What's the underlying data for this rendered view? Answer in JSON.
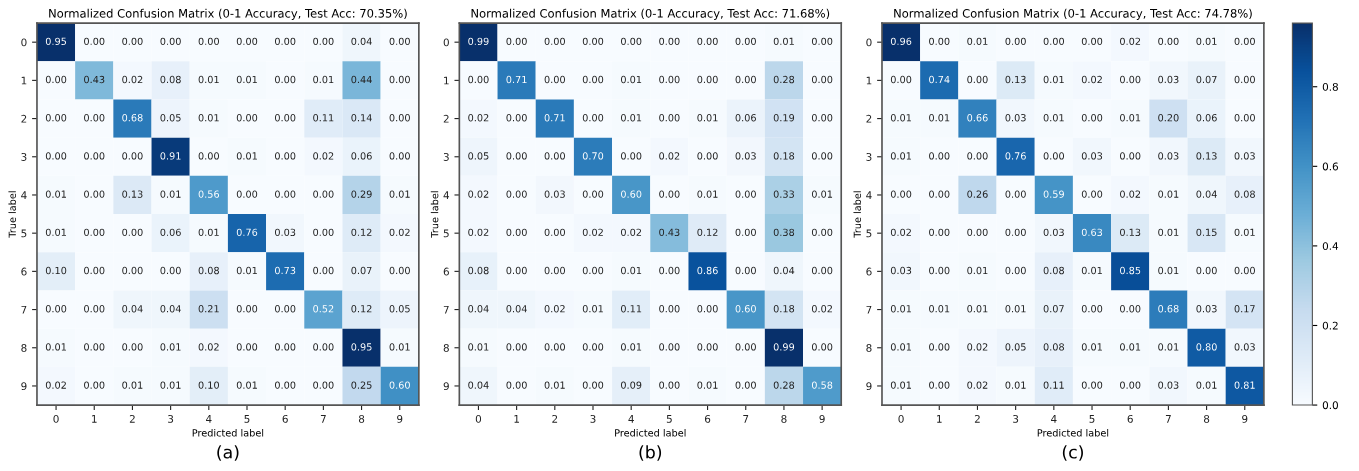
{
  "chart_data": [
    {
      "type": "heatmap",
      "title": "Normalized Confusion Matrix (0-1 Accuracy, Test Acc: 70.35%)",
      "xlabel": "Predicted label",
      "ylabel": "True label",
      "annotations": [
        "(a)"
      ],
      "cell_labels": [
        [
          "0.95",
          "0.00",
          "0.00",
          "0.00",
          "0.00",
          "0.00",
          "0.00",
          "0.00",
          "0.04",
          "0.00"
        ],
        [
          "0.00",
          "0.43",
          "0.02",
          "0.08",
          "0.01",
          "0.01",
          "0.00",
          "0.01",
          "0.44",
          "0.00"
        ],
        [
          "0.00",
          "0.00",
          "0.68",
          "0.05",
          "0.01",
          "0.00",
          "0.00",
          "0.11",
          "0.14",
          "0.00"
        ],
        [
          "0.00",
          "0.00",
          "0.00",
          "0.91",
          "0.00",
          "0.01",
          "0.00",
          "0.02",
          "0.06",
          "0.00"
        ],
        [
          "0.01",
          "0.00",
          "0.13",
          "0.01",
          "0.56",
          "0.00",
          "0.00",
          "0.00",
          "0.29",
          "0.01"
        ],
        [
          "0.01",
          "0.00",
          "0.00",
          "0.06",
          "0.01",
          "0.76",
          "0.03",
          "0.00",
          "0.12",
          "0.02"
        ],
        [
          "0.10",
          "0.00",
          "0.00",
          "0.00",
          "0.08",
          "0.01",
          "0.73",
          "0.00",
          "0.07",
          "0.00"
        ],
        [
          "0.00",
          "0.00",
          "0.04",
          "0.04",
          "0.21",
          "0.00",
          "0.00",
          "0.52",
          "0.12",
          "0.05"
        ],
        [
          "0.01",
          "0.00",
          "0.00",
          "0.01",
          "0.02",
          "0.00",
          "0.00",
          "0.00",
          "0.95",
          "0.01"
        ],
        [
          "0.02",
          "0.00",
          "0.01",
          "0.01",
          "0.10",
          "0.01",
          "0.00",
          "0.00",
          "0.25",
          "0.60"
        ]
      ],
      "categories": [
        "0",
        "1",
        "2",
        "3",
        "4",
        "5",
        "6",
        "7",
        "8",
        "9"
      ],
      "y_categories": [
        "0",
        "1",
        "2",
        "3",
        "4",
        "5",
        "6",
        "7",
        "8",
        "9"
      ],
      "cells": [
        [
          0.95,
          0.0,
          0.0,
          0.0,
          0.0,
          0.0,
          0.0,
          0.0,
          0.04,
          0.0
        ],
        [
          0.0,
          0.43,
          0.02,
          0.08,
          0.01,
          0.01,
          0.0,
          0.01,
          0.44,
          0.0
        ],
        [
          0.0,
          0.0,
          0.68,
          0.05,
          0.01,
          0.0,
          0.0,
          0.11,
          0.14,
          0.0
        ],
        [
          0.0,
          0.0,
          0.0,
          0.91,
          0.0,
          0.01,
          0.0,
          0.02,
          0.06,
          0.0
        ],
        [
          0.01,
          0.0,
          0.13,
          0.01,
          0.56,
          0.0,
          0.0,
          0.0,
          0.29,
          0.01
        ],
        [
          0.01,
          0.0,
          0.0,
          0.06,
          0.01,
          0.76,
          0.03,
          0.0,
          0.12,
          0.02
        ],
        [
          0.1,
          0.0,
          0.0,
          0.0,
          0.08,
          0.01,
          0.73,
          0.0,
          0.07,
          0.0
        ],
        [
          0.0,
          0.0,
          0.04,
          0.04,
          0.21,
          0.0,
          0.0,
          0.52,
          0.12,
          0.05
        ],
        [
          0.01,
          0.0,
          0.0,
          0.01,
          0.02,
          0.0,
          0.0,
          0.0,
          0.95,
          0.01
        ],
        [
          0.02,
          0.0,
          0.01,
          0.01,
          0.1,
          0.01,
          0.0,
          0.0,
          0.25,
          0.6
        ]
      ]
    },
    {
      "type": "heatmap",
      "title": "Normalized Confusion Matrix (0-1 Accuracy, Test Acc: 71.68%)",
      "xlabel": "Predicted label",
      "ylabel": "True label",
      "annotations": [
        "(b)"
      ],
      "cell_labels": [
        [
          "0.99",
          "0.00",
          "0.00",
          "0.00",
          "0.00",
          "0.00",
          "0.00",
          "0.00",
          "0.01",
          "0.00"
        ],
        [
          "0.00",
          "0.71",
          "0.00",
          "0.00",
          "0.01",
          "0.00",
          "0.00",
          "0.00",
          "0.28",
          "0.00"
        ],
        [
          "0.02",
          "0.00",
          "0.71",
          "0.00",
          "0.01",
          "0.00",
          "0.01",
          "0.06",
          "0.19",
          "0.00"
        ],
        [
          "0.05",
          "0.00",
          "0.00",
          "0.70",
          "0.00",
          "0.02",
          "0.00",
          "0.03",
          "0.18",
          "0.00"
        ],
        [
          "0.02",
          "0.00",
          "0.03",
          "0.00",
          "0.60",
          "0.00",
          "0.01",
          "0.00",
          "0.33",
          "0.01"
        ],
        [
          "0.02",
          "0.00",
          "0.00",
          "0.02",
          "0.02",
          "0.43",
          "0.12",
          "0.00",
          "0.38",
          "0.00"
        ],
        [
          "0.08",
          "0.00",
          "0.00",
          "0.00",
          "0.01",
          "0.00",
          "0.86",
          "0.00",
          "0.04",
          "0.00"
        ],
        [
          "0.04",
          "0.04",
          "0.02",
          "0.01",
          "0.11",
          "0.00",
          "0.00",
          "0.60",
          "0.18",
          "0.02"
        ],
        [
          "0.01",
          "0.00",
          "0.00",
          "0.00",
          "0.01",
          "0.00",
          "0.00",
          "0.00",
          "0.99",
          "0.00"
        ],
        [
          "0.04",
          "0.00",
          "0.01",
          "0.00",
          "0.09",
          "0.00",
          "0.01",
          "0.00",
          "0.28",
          "0.58"
        ]
      ],
      "categories": [
        "0",
        "1",
        "2",
        "3",
        "4",
        "5",
        "6",
        "7",
        "8",
        "9"
      ],
      "y_categories": [
        "0",
        "1",
        "2",
        "3",
        "4",
        "5",
        "6",
        "7",
        "8",
        "9"
      ],
      "cells": [
        [
          0.99,
          0.0,
          0.0,
          0.0,
          0.0,
          0.0,
          0.0,
          0.0,
          0.01,
          0.0
        ],
        [
          0.0,
          0.71,
          0.0,
          0.0,
          0.01,
          0.0,
          0.0,
          0.0,
          0.28,
          0.0
        ],
        [
          0.02,
          0.0,
          0.71,
          0.0,
          0.01,
          0.0,
          0.01,
          0.06,
          0.19,
          0.0
        ],
        [
          0.05,
          0.0,
          0.0,
          0.7,
          0.0,
          0.02,
          0.0,
          0.03,
          0.18,
          0.0
        ],
        [
          0.02,
          0.0,
          0.03,
          0.0,
          0.6,
          0.0,
          0.01,
          0.0,
          0.33,
          0.01
        ],
        [
          0.02,
          0.0,
          0.0,
          0.02,
          0.02,
          0.43,
          0.12,
          0.0,
          0.38,
          0.0
        ],
        [
          0.08,
          0.0,
          0.0,
          0.0,
          0.01,
          0.0,
          0.86,
          0.0,
          0.04,
          0.0
        ],
        [
          0.04,
          0.04,
          0.02,
          0.01,
          0.11,
          0.0,
          0.0,
          0.6,
          0.18,
          0.02
        ],
        [
          0.01,
          0.0,
          0.0,
          0.0,
          0.01,
          0.0,
          0.0,
          0.0,
          0.99,
          0.0
        ],
        [
          0.04,
          0.0,
          0.01,
          0.0,
          0.09,
          0.0,
          0.01,
          0.0,
          0.28,
          0.58
        ]
      ]
    },
    {
      "type": "heatmap",
      "title": "Normalized Confusion Matrix (0-1 Accuracy, Test Acc: 74.78%)",
      "xlabel": "Predicted label",
      "ylabel": "True label",
      "annotations": [
        "(c)"
      ],
      "cell_labels": [
        [
          "0.96",
          "0.00",
          "0.01",
          "0.00",
          "0.00",
          "0.00",
          "0.02",
          "0.00",
          "0.01",
          "0.00"
        ],
        [
          "0.00",
          "0.74",
          "0.00",
          "0.13",
          "0.01",
          "0.02",
          "0.00",
          "0.03",
          "0.07",
          "0.00"
        ],
        [
          "0.01",
          "0.01",
          "0.66",
          "0.03",
          "0.01",
          "0.00",
          "0.01",
          "0.20",
          "0.06",
          "0.00"
        ],
        [
          "0.01",
          "0.00",
          "0.00",
          "0.76",
          "0.00",
          "0.03",
          "0.00",
          "0.03",
          "0.13",
          "0.03"
        ],
        [
          "0.00",
          "0.00",
          "0.26",
          "0.00",
          "0.59",
          "0.00",
          "0.02",
          "0.01",
          "0.04",
          "0.08"
        ],
        [
          "0.02",
          "0.00",
          "0.00",
          "0.00",
          "0.03",
          "0.63",
          "0.13",
          "0.01",
          "0.15",
          "0.01"
        ],
        [
          "0.03",
          "0.00",
          "0.01",
          "0.00",
          "0.08",
          "0.01",
          "0.85",
          "0.01",
          "0.00",
          "0.00"
        ],
        [
          "0.01",
          "0.01",
          "0.01",
          "0.01",
          "0.07",
          "0.00",
          "0.00",
          "0.68",
          "0.03",
          "0.17"
        ],
        [
          "0.01",
          "0.00",
          "0.02",
          "0.05",
          "0.08",
          "0.01",
          "0.01",
          "0.01",
          "0.80",
          "0.03"
        ],
        [
          "0.01",
          "0.00",
          "0.02",
          "0.01",
          "0.11",
          "0.00",
          "0.00",
          "0.03",
          "0.01",
          "0.81"
        ]
      ],
      "categories": [
        "0",
        "1",
        "2",
        "3",
        "4",
        "5",
        "6",
        "7",
        "8",
        "9"
      ],
      "y_categories": [
        "0",
        "1",
        "2",
        "3",
        "4",
        "5",
        "6",
        "7",
        "8",
        "9"
      ],
      "clim": [
        0,
        0.96
      ],
      "cticks": [
        {
          "value": 0,
          "label": "0.0"
        },
        {
          "value": 0.2,
          "label": "0.2"
        },
        {
          "value": 0.4,
          "label": "0.4"
        },
        {
          "value": 0.6,
          "label": "0.6"
        },
        {
          "value": 0.8,
          "label": "0.8"
        }
      ],
      "cells": [
        [
          0.96,
          0.0,
          0.01,
          0.0,
          0.0,
          0.0,
          0.02,
          0.0,
          0.01,
          0.0
        ],
        [
          0.0,
          0.74,
          0.0,
          0.13,
          0.01,
          0.02,
          0.0,
          0.03,
          0.07,
          0.0
        ],
        [
          0.01,
          0.01,
          0.66,
          0.03,
          0.01,
          0.0,
          0.01,
          0.2,
          0.06,
          0.0
        ],
        [
          0.01,
          0.0,
          0.0,
          0.76,
          0.0,
          0.03,
          0.0,
          0.03,
          0.13,
          0.03
        ],
        [
          0.0,
          0.0,
          0.26,
          0.0,
          0.59,
          0.0,
          0.02,
          0.01,
          0.04,
          0.08
        ],
        [
          0.02,
          0.0,
          0.0,
          0.0,
          0.03,
          0.63,
          0.13,
          0.01,
          0.15,
          0.01
        ],
        [
          0.03,
          0.0,
          0.01,
          0.0,
          0.08,
          0.01,
          0.85,
          0.01,
          0.0,
          0.0
        ],
        [
          0.01,
          0.01,
          0.01,
          0.01,
          0.07,
          0.0,
          0.0,
          0.68,
          0.03,
          0.17
        ],
        [
          0.01,
          0.0,
          0.02,
          0.05,
          0.08,
          0.01,
          0.01,
          0.01,
          0.8,
          0.03
        ],
        [
          0.01,
          0.0,
          0.02,
          0.01,
          0.11,
          0.0,
          0.0,
          0.03,
          0.01,
          0.81
        ]
      ]
    }
  ]
}
